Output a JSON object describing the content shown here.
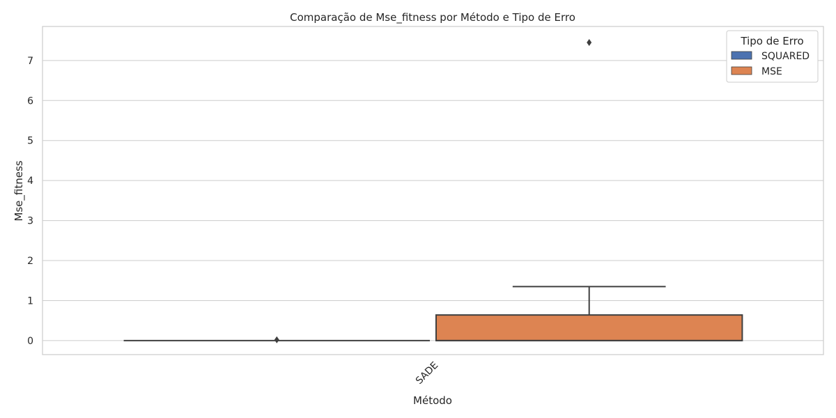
{
  "chart_data": {
    "type": "box",
    "title": "Comparação de Mse_fitness por Método e Tipo de Erro",
    "xlabel": "Método",
    "ylabel": "Mse_fitness",
    "categories": [
      "SADE"
    ],
    "ylim": [
      -0.35,
      7.85
    ],
    "yticks": [
      0,
      1,
      2,
      3,
      4,
      5,
      6,
      7
    ],
    "grid": true,
    "legend": {
      "title": "Tipo de Erro",
      "position": "top-right"
    },
    "series": [
      {
        "name": "SQUARED",
        "color": "#4c72b0",
        "boxes": [
          {
            "category": "SADE",
            "q1": 0.0,
            "median": 0.0,
            "q3": 0.0,
            "whisker_low": 0.0,
            "whisker_high": 0.0,
            "outliers": [
              0.02
            ]
          }
        ]
      },
      {
        "name": "MSE",
        "color": "#dd8452",
        "boxes": [
          {
            "category": "SADE",
            "q1": 0.0,
            "median": 0.0,
            "q3": 0.64,
            "whisker_low": 0.0,
            "whisker_high": 1.35,
            "outliers": [
              7.45
            ]
          }
        ]
      }
    ]
  }
}
